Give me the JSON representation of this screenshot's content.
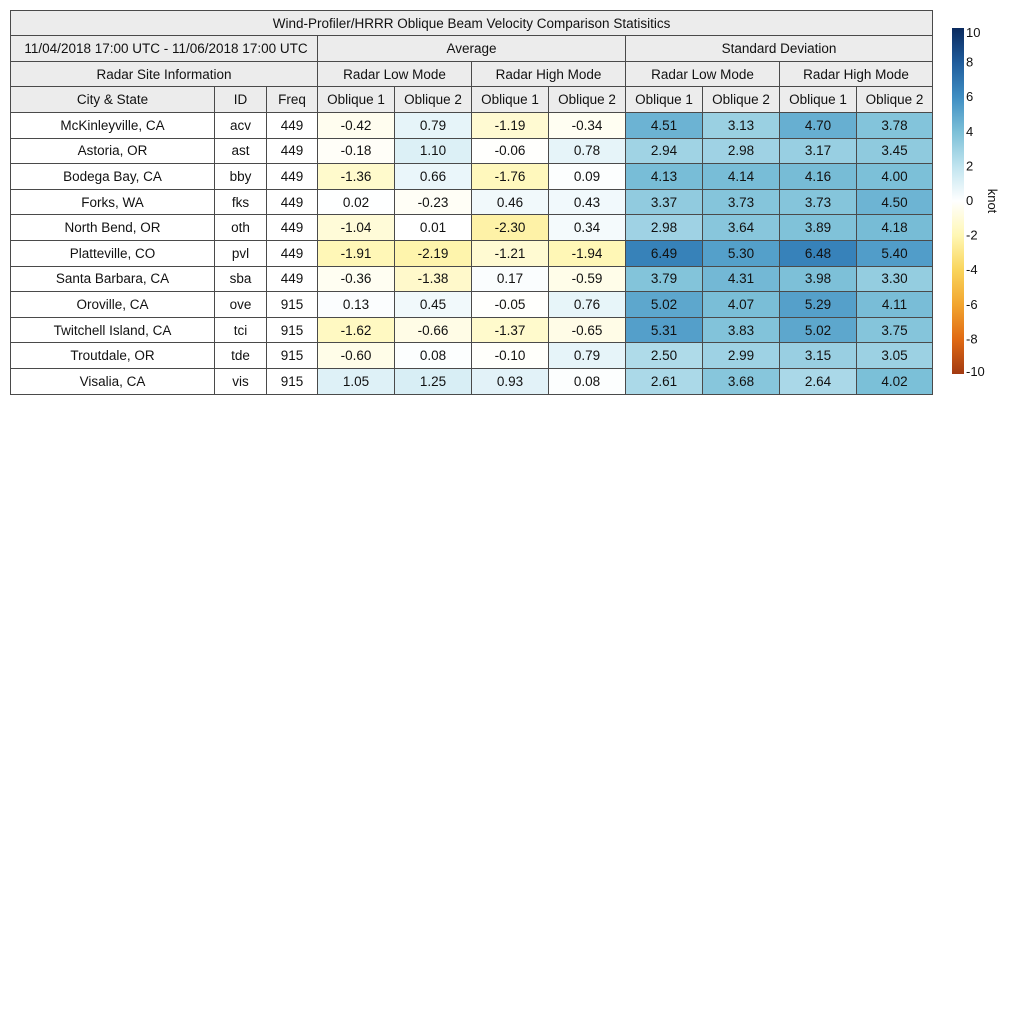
{
  "chart_data": {
    "type": "table",
    "title": "Wind-Profiler/HRRR Oblique Beam Velocity Comparison Statisitics",
    "date_range": "11/04/2018 17:00 UTC - 11/06/2018 17:00 UTC",
    "group_headers": [
      "Average",
      "Standard Deviation"
    ],
    "info_header": "Radar Site Information",
    "mode_headers": [
      "Radar Low Mode",
      "Radar High Mode",
      "Radar Low Mode",
      "Radar High Mode"
    ],
    "column_headers": [
      "City & State",
      "ID",
      "Freq",
      "Oblique 1",
      "Oblique 2",
      "Oblique 1",
      "Oblique 2",
      "Oblique 1",
      "Oblique 2",
      "Oblique 1",
      "Oblique 2"
    ],
    "rows": [
      {
        "city": "McKinleyville, CA",
        "id": "acv",
        "freq": "449",
        "values": [
          "-0.42",
          "0.79",
          "-1.19",
          "-0.34",
          "4.51",
          "3.13",
          "4.70",
          "3.78"
        ]
      },
      {
        "city": "Astoria, OR",
        "id": "ast",
        "freq": "449",
        "values": [
          "-0.18",
          "1.10",
          "-0.06",
          "0.78",
          "2.94",
          "2.98",
          "3.17",
          "3.45"
        ]
      },
      {
        "city": "Bodega Bay, CA",
        "id": "bby",
        "freq": "449",
        "values": [
          "-1.36",
          "0.66",
          "-1.76",
          "0.09",
          "4.13",
          "4.14",
          "4.16",
          "4.00"
        ]
      },
      {
        "city": "Forks, WA",
        "id": "fks",
        "freq": "449",
        "values": [
          "0.02",
          "-0.23",
          "0.46",
          "0.43",
          "3.37",
          "3.73",
          "3.73",
          "4.50"
        ]
      },
      {
        "city": "North Bend, OR",
        "id": "oth",
        "freq": "449",
        "values": [
          "-1.04",
          "0.01",
          "-2.30",
          "0.34",
          "2.98",
          "3.64",
          "3.89",
          "4.18"
        ]
      },
      {
        "city": "Platteville, CO",
        "id": "pvl",
        "freq": "449",
        "values": [
          "-1.91",
          "-2.19",
          "-1.21",
          "-1.94",
          "6.49",
          "5.30",
          "6.48",
          "5.40"
        ]
      },
      {
        "city": "Santa Barbara, CA",
        "id": "sba",
        "freq": "449",
        "values": [
          "-0.36",
          "-1.38",
          "0.17",
          "-0.59",
          "3.79",
          "4.31",
          "3.98",
          "3.30"
        ]
      },
      {
        "city": "Oroville, CA",
        "id": "ove",
        "freq": "915",
        "values": [
          "0.13",
          "0.45",
          "-0.05",
          "0.76",
          "5.02",
          "4.07",
          "5.29",
          "4.11"
        ]
      },
      {
        "city": "Twitchell Island, CA",
        "id": "tci",
        "freq": "915",
        "values": [
          "-1.62",
          "-0.66",
          "-1.37",
          "-0.65",
          "5.31",
          "3.83",
          "5.02",
          "3.75"
        ]
      },
      {
        "city": "Troutdale, OR",
        "id": "tde",
        "freq": "915",
        "values": [
          "-0.60",
          "0.08",
          "-0.10",
          "0.79",
          "2.50",
          "2.99",
          "3.15",
          "3.05"
        ]
      },
      {
        "city": "Visalia, CA",
        "id": "vis",
        "freq": "915",
        "values": [
          "1.05",
          "1.25",
          "0.93",
          "0.08",
          "2.61",
          "3.68",
          "2.64",
          "4.02"
        ]
      }
    ],
    "colorbar": {
      "unit": "knot",
      "range": [
        -10,
        10
      ],
      "ticks": [
        "10",
        "8",
        "6",
        "4",
        "2",
        "0",
        "-2",
        "-4",
        "-6",
        "-8",
        "-10"
      ],
      "colors": [
        "#0a2a5e",
        "#1f5c9c",
        "#3f8ec3",
        "#7cc0d8",
        "#c0e4ef",
        "#ffffff",
        "#fff7b4",
        "#f9d45b",
        "#f2a52f",
        "#e06a14",
        "#a23a12"
      ]
    }
  }
}
